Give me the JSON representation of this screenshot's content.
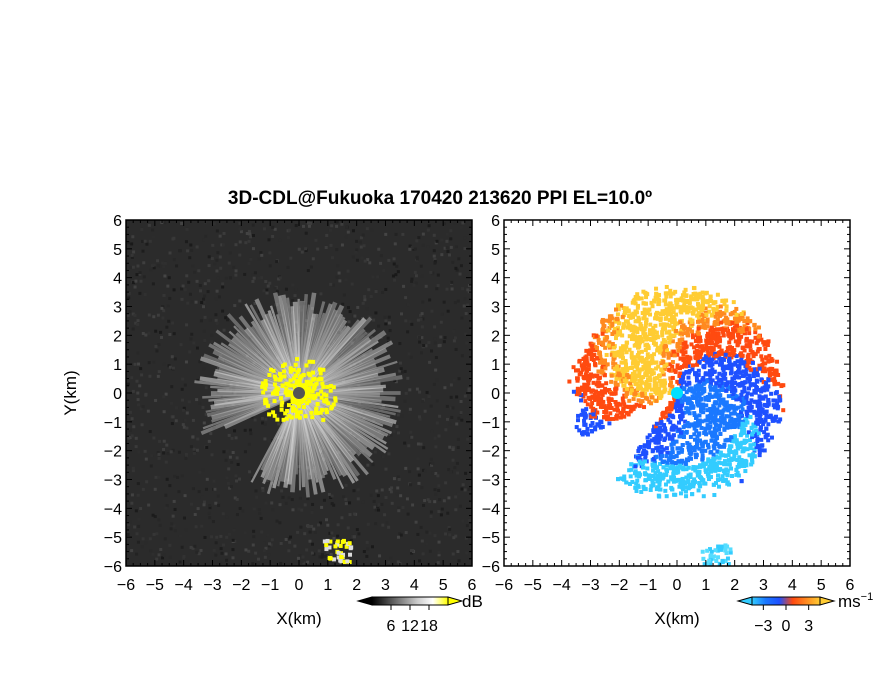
{
  "title": "3D-CDL@Fukuoka 170420 213620 PPI EL=10.0º",
  "colors": {
    "background": "#ffffff",
    "snr_background": "#2b2b2b",
    "snr_strong": "#ffff00",
    "velocity_negative": "#1e50ff",
    "velocity_positive": "#ff4a10",
    "velocity_light_positive": "#ffcc33",
    "velocity_light_negative": "#33ccff",
    "radar_site_left": "#555555",
    "radar_site_right": "#00e0ff"
  },
  "chart_data": [
    {
      "type": "heatmap",
      "quantity": "SNR",
      "xlabel": "X(km)",
      "ylabel": "Y(km)",
      "xlim": [
        -6,
        6
      ],
      "ylim": [
        -6,
        6
      ],
      "x_ticks": [
        "−6",
        "−5",
        "−4",
        "−3",
        "−2",
        "−1",
        "0",
        "1",
        "2",
        "3",
        "4",
        "5",
        "6"
      ],
      "y_ticks": [
        "−6",
        "−5",
        "−4",
        "−3",
        "−2",
        "−1",
        "0",
        "1",
        "2",
        "3",
        "4",
        "5",
        "6"
      ],
      "colorbar": {
        "unit": "dB",
        "tick_labels": [
          "6",
          "12",
          "18"
        ],
        "tick_values": [
          6,
          12,
          18
        ],
        "range": [
          0,
          24
        ],
        "colormap": "gray-to-yellow"
      },
      "echo_radius_km": 3.4,
      "echo_gap_sector_deg": [
        205,
        240
      ],
      "strong_echo_core_radius_km": 1.3,
      "site": [
        0,
        0
      ],
      "isolated_echo": {
        "x_range_km": [
          0.8,
          1.8
        ],
        "y_range_km": [
          -5.8,
          -5.0
        ]
      }
    },
    {
      "type": "heatmap",
      "quantity": "Doppler velocity",
      "xlabel": "X(km)",
      "xlim": [
        -6,
        6
      ],
      "ylim": [
        -6,
        6
      ],
      "x_ticks": [
        "−6",
        "−5",
        "−4",
        "−3",
        "−2",
        "−1",
        "0",
        "1",
        "2",
        "3",
        "4",
        "5",
        "6"
      ],
      "y_ticks": [
        "−6",
        "−5",
        "−4",
        "−3",
        "−2",
        "−1",
        "0",
        "1",
        "2",
        "3",
        "4",
        "5",
        "6"
      ],
      "colorbar": {
        "unit": "ms",
        "unit_exponent": "−1",
        "tick_labels": [
          "−3",
          "0",
          "3"
        ],
        "tick_values": [
          -3,
          0,
          3
        ],
        "range": [
          -4.5,
          4.5
        ],
        "colormap": "blue-to-orange"
      },
      "echo_radius_km": 3.6,
      "echo_gap_sector_deg": [
        205,
        235
      ],
      "positive_sector": "west",
      "negative_sector": "east",
      "site": [
        0,
        0
      ],
      "isolated_echo": {
        "x_range_km": [
          0.8,
          1.8
        ],
        "y_range_km": [
          -5.9,
          -5.2
        ],
        "velocity": -3
      }
    }
  ]
}
